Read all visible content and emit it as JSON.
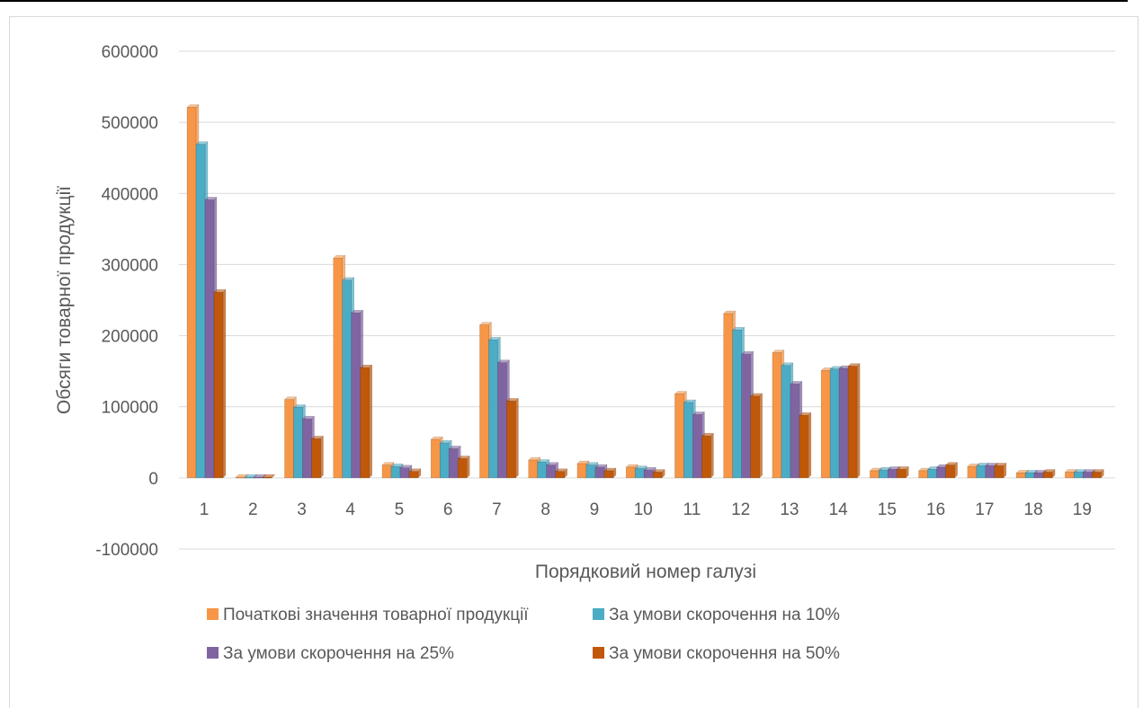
{
  "chart_data": {
    "type": "bar",
    "title": "",
    "xlabel": "Порядковий номер галузі",
    "ylabel": "Обсяги товарної продукції",
    "ylim": [
      -100000,
      600000
    ],
    "yticks": [
      600000,
      500000,
      400000,
      300000,
      200000,
      100000,
      0,
      -100000
    ],
    "grid": true,
    "legend": "bottom",
    "categories": [
      "1",
      "2",
      "3",
      "4",
      "5",
      "6",
      "7",
      "8",
      "9",
      "10",
      "11",
      "12",
      "13",
      "14",
      "15",
      "16",
      "17",
      "18",
      "19"
    ],
    "series": [
      {
        "name": "Початкові значення товарної продукції",
        "color": "#f79646",
        "values": [
          521000,
          1000,
          110000,
          309000,
          18000,
          54000,
          215000,
          25000,
          20000,
          15000,
          118000,
          231000,
          176000,
          151000,
          10000,
          10000,
          16000,
          7000,
          8000
        ]
      },
      {
        "name": "За умови скорочення на 10%",
        "color": "#4bacc6",
        "values": [
          469000,
          1000,
          99000,
          278000,
          16000,
          49000,
          194000,
          22000,
          18000,
          13000,
          106000,
          208000,
          158000,
          153000,
          11000,
          12000,
          17000,
          7000,
          8000
        ]
      },
      {
        "name": "За умови скорочення на 25%",
        "color": "#8064a2",
        "values": [
          391000,
          1000,
          83000,
          232000,
          14000,
          41000,
          162000,
          18000,
          15000,
          11000,
          89000,
          174000,
          132000,
          154000,
          12000,
          15000,
          17000,
          7000,
          8000
        ]
      },
      {
        "name": "За умови скорочення на 50%",
        "color": "#c0580a",
        "values": [
          261000,
          1000,
          55000,
          155000,
          9000,
          27000,
          108000,
          9000,
          10000,
          8000,
          59000,
          115000,
          88000,
          157000,
          12000,
          18000,
          17000,
          8000,
          8000
        ]
      }
    ]
  }
}
